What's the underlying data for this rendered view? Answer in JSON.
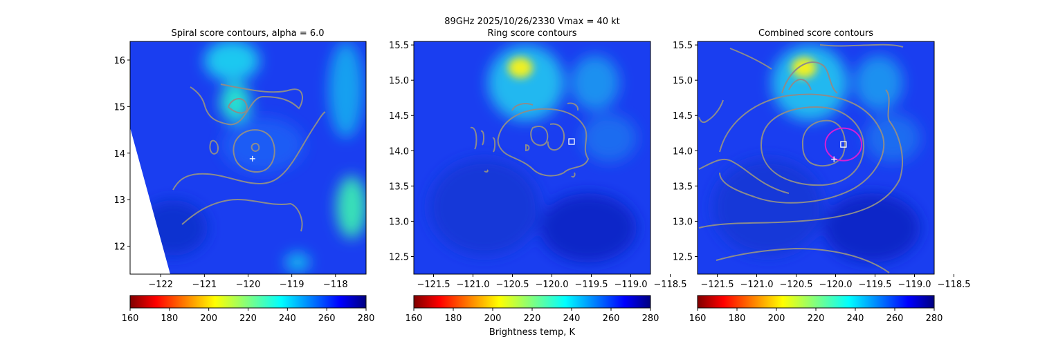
{
  "figure": {
    "suptitle_line1": "89GHz  2025/10/26/2330    Vmax = 40 kt",
    "colorbar_label": "Brightness temp, K"
  },
  "colors": {
    "contour": "#8c8c8c",
    "center_marker": "#ffffff",
    "ring_fit": "#d61fd6",
    "missing_data": "#ffffff"
  },
  "chart_data": [
    {
      "type": "heatmap",
      "title": "Spiral score contours, alpha =  6.0",
      "xlim": [
        -122.7,
        -117.3
      ],
      "ylim": [
        11.4,
        16.4
      ],
      "xticks": [
        -122,
        -121,
        -120,
        -119,
        -118
      ],
      "xtick_labels": [
        "−122",
        "−121",
        "−120",
        "−119",
        "−118"
      ],
      "yticks": [
        12,
        13,
        14,
        15,
        16
      ],
      "ytick_labels": [
        "12",
        "13",
        "14",
        "15",
        "16"
      ],
      "colorbar": {
        "cmap": "jet_r",
        "range": [
          160,
          280
        ],
        "ticks": [
          "160",
          "180",
          "200",
          "220",
          "240",
          "260",
          "280"
        ]
      },
      "markers": [
        {
          "type": "plus",
          "x": -119.9,
          "y": 13.88,
          "color": "center_marker"
        }
      ]
    },
    {
      "type": "heatmap",
      "title": "Ring score contours",
      "xlim": [
        -121.75,
        -118.75
      ],
      "ylim": [
        12.25,
        15.55
      ],
      "xticks": [
        -121.5,
        -121.0,
        -120.5,
        -120.0,
        -119.5,
        -119.0,
        -118.5
      ],
      "xtick_labels": [
        "−121.5",
        "−121.0",
        "−120.5",
        "−120.0",
        "−119.5",
        "−119.0",
        "−118.5"
      ],
      "yticks": [
        12.5,
        13.0,
        13.5,
        14.0,
        14.5,
        15.0,
        15.5
      ],
      "ytick_labels": [
        "12.5",
        "13.0",
        "13.5",
        "14.0",
        "14.5",
        "15.0",
        "15.5"
      ],
      "colorbar": {
        "cmap": "jet_r",
        "range": [
          160,
          280
        ],
        "ticks": [
          "160",
          "180",
          "200",
          "220",
          "240",
          "260",
          "280"
        ]
      },
      "markers": [
        {
          "type": "square",
          "x": -119.75,
          "y": 14.13,
          "color": "center_marker"
        }
      ]
    },
    {
      "type": "heatmap",
      "title": "Combined score contours",
      "xlim": [
        -121.75,
        -118.75
      ],
      "ylim": [
        12.25,
        15.55
      ],
      "xticks": [
        -121.5,
        -121.0,
        -120.5,
        -120.0,
        -119.5,
        -119.0,
        -118.5
      ],
      "xtick_labels": [
        "−121.5",
        "−121.0",
        "−120.5",
        "−120.0",
        "−119.5",
        "−119.0",
        "−118.5"
      ],
      "yticks": [
        12.5,
        13.0,
        13.5,
        14.0,
        14.5,
        15.0,
        15.5
      ],
      "ytick_labels": [
        "12.5",
        "13.0",
        "13.5",
        "14.0",
        "14.5",
        "15.0",
        "15.5"
      ],
      "colorbar": {
        "cmap": "jet_r",
        "range": [
          160,
          280
        ],
        "ticks": [
          "160",
          "180",
          "200",
          "220",
          "240",
          "260",
          "280"
        ]
      },
      "markers": [
        {
          "type": "square",
          "x": -119.9,
          "y": 14.09,
          "color": "center_marker"
        },
        {
          "type": "plus",
          "x": -120.02,
          "y": 13.88,
          "color": "center_marker"
        }
      ],
      "ring": {
        "center_x": -119.9,
        "center_y": 14.09,
        "radius_deg": 0.23,
        "color": "ring_fit"
      }
    }
  ]
}
